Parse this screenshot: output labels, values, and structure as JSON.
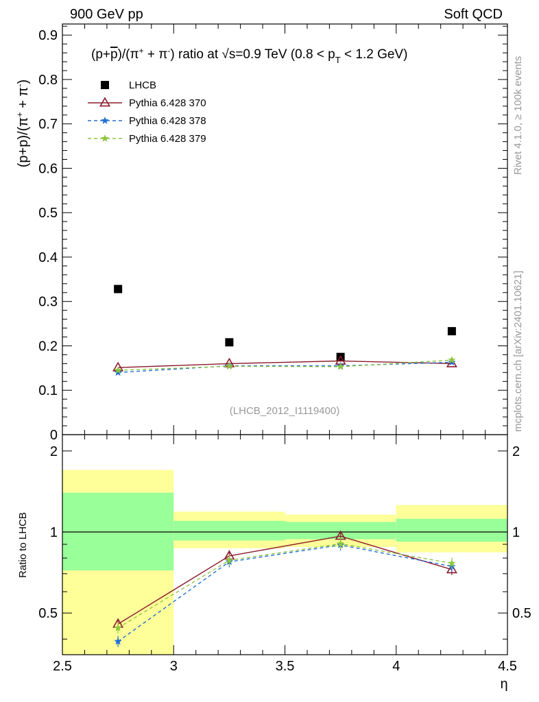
{
  "header": {
    "left_label": "900 GeV pp",
    "right_label": "Soft QCD"
  },
  "side_labels": {
    "rivet": "Rivet 4.1.0, ≥ 100k events",
    "mcplots": "mcplots.cern.ch [arXiv:2401.10621]"
  },
  "chart_data": [
    {
      "type": "scatter",
      "panel": "main",
      "title": "(p+p̄)/(π⁺ + π⁻) ratio at √s=0.9 TeV (0.8 < pT < 1.2 GeV)",
      "title_parts": {
        "prefix": "(p+",
        "pbar": "p",
        "mid": ")/(π",
        "plus": "+",
        "mid2": " + π",
        "minus": "-",
        "sqrt": "√",
        "s_eq": "s=0.9 TeV (0.8 < p",
        "T": "T",
        "tail": " < 1.2 GeV)"
      },
      "ylabel_parts": {
        "prefix": "(p+",
        "pbar": "p",
        "mid": ")/(π",
        "plus": "+",
        "mid2": " + π",
        "minus": "-",
        "close": ")"
      },
      "analysis_id": "(LHCB_2012_I1119400)",
      "xlim": [
        2.5,
        4.5
      ],
      "ylim": [
        0,
        0.925
      ],
      "y_ticks": [
        "0",
        "0.1",
        "0.2",
        "0.3",
        "0.4",
        "0.5",
        "0.6",
        "0.7",
        "0.8",
        "0.9"
      ],
      "x": [
        2.75,
        3.25,
        3.75,
        4.25
      ],
      "x_bin_edges": [
        2.5,
        3.0,
        3.5,
        4.0,
        4.5
      ],
      "series": [
        {
          "name": "LHCB",
          "style": "data",
          "color": "#000000",
          "values": [
            0.328,
            0.208,
            0.175,
            0.233
          ]
        },
        {
          "name": "Pythia 6.428 370",
          "style": "triangle-solid",
          "color": "#8b1a2c",
          "values": [
            0.151,
            0.16,
            0.166,
            0.16
          ]
        },
        {
          "name": "Pythia 6.428 378",
          "style": "star-dashed",
          "color": "#1f6fd6",
          "values": [
            0.14,
            0.155,
            0.155,
            0.163
          ]
        },
        {
          "name": "Pythia 6.428 379",
          "style": "star-dashed",
          "color": "#8cc63f",
          "values": [
            0.145,
            0.154,
            0.153,
            0.168
          ]
        }
      ]
    },
    {
      "type": "scatter",
      "panel": "ratio",
      "ylabel": "Ratio to LHCB",
      "xlabel": "η",
      "xlim": [
        2.5,
        4.5
      ],
      "ylim": [
        0.35,
        2.3
      ],
      "y_scale": "log",
      "y_ticks": [
        "0.5",
        "1",
        "2"
      ],
      "x_ticks": [
        "2.5",
        "3",
        "3.5",
        "4",
        "4.5"
      ],
      "uncertainty_bands": {
        "stat_color": "#99ff99",
        "total_color": "#ffff99",
        "inner": [
          [
            0.72,
            1.4
          ],
          [
            0.93,
            1.1
          ],
          [
            0.94,
            1.09
          ],
          [
            0.92,
            1.12
          ]
        ],
        "outer": [
          [
            0.35,
            1.7
          ],
          [
            0.87,
            1.19
          ],
          [
            0.88,
            1.16
          ],
          [
            0.84,
            1.26
          ]
        ]
      },
      "series": [
        {
          "name": "Pythia 6.428 370",
          "color": "#8b1a2c",
          "values": [
            0.455,
            0.815,
            0.965,
            0.725
          ]
        },
        {
          "name": "Pythia 6.428 378",
          "color": "#1f6fd6",
          "values": [
            0.392,
            0.775,
            0.895,
            0.745
          ]
        },
        {
          "name": "Pythia 6.428 379",
          "color": "#8cc63f",
          "values": [
            0.44,
            0.785,
            0.905,
            0.765
          ]
        }
      ]
    }
  ]
}
